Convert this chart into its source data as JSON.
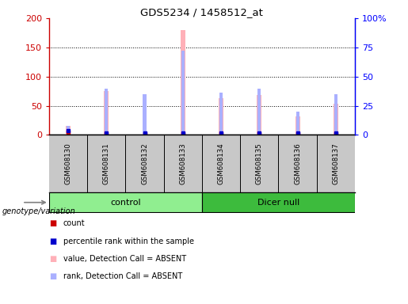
{
  "title": "GDS5234 / 1458512_at",
  "samples": [
    "GSM608130",
    "GSM608131",
    "GSM608132",
    "GSM608133",
    "GSM608134",
    "GSM608135",
    "GSM608136",
    "GSM608137"
  ],
  "groups": [
    {
      "label": "control",
      "start": 0,
      "end": 4,
      "color": "#90ee90"
    },
    {
      "label": "Dicer null",
      "start": 4,
      "end": 8,
      "color": "#3dbb3d"
    }
  ],
  "pink_bars": [
    15,
    75,
    70,
    180,
    63,
    68,
    32,
    53
  ],
  "blue_bars_right": [
    8,
    40,
    35,
    72,
    36,
    40,
    20,
    35
  ],
  "red_marker_y": [
    5,
    2,
    2,
    2,
    2,
    2,
    2,
    2
  ],
  "blue_marker_y": [
    4,
    2,
    2,
    2,
    2,
    2,
    2,
    2
  ],
  "ylim_left": [
    0,
    200
  ],
  "ylim_right": [
    0,
    100
  ],
  "yticks_left": [
    0,
    50,
    100,
    150,
    200
  ],
  "yticks_left_labels": [
    "0",
    "50",
    "100",
    "150",
    "200"
  ],
  "yticks_right": [
    0,
    25,
    50,
    75,
    100
  ],
  "yticks_right_labels": [
    "0",
    "25",
    "50",
    "75",
    "100%"
  ],
  "grid_values": [
    50,
    100,
    150
  ],
  "pink_color": "#ffb0b8",
  "blue_bar_color": "#aab0ff",
  "red_marker_color": "#cc0000",
  "blue_marker_color": "#0000cc",
  "bar_width": 0.12,
  "bg_color": "#c8c8c8",
  "legend_items": [
    {
      "color": "#cc0000",
      "label": "count"
    },
    {
      "color": "#0000cc",
      "label": "percentile rank within the sample"
    },
    {
      "color": "#ffb0b8",
      "label": "value, Detection Call = ABSENT"
    },
    {
      "color": "#aab0ff",
      "label": "rank, Detection Call = ABSENT"
    }
  ],
  "group_label_prefix": "genotype/variation"
}
